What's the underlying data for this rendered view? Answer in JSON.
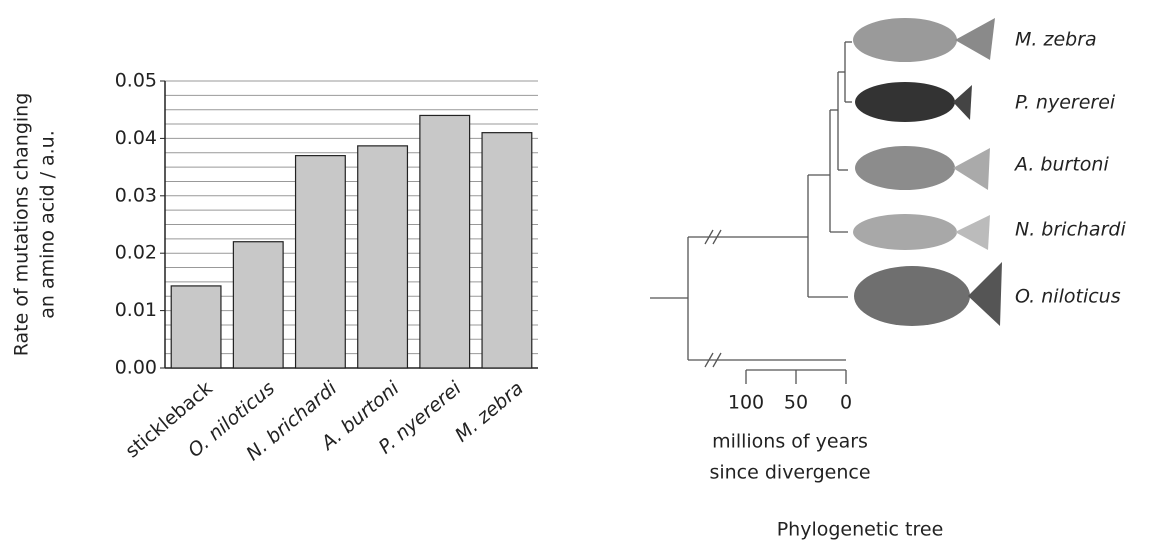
{
  "chart_data": {
    "type": "bar",
    "ylabel": [
      "Rate of mutations changing",
      "an amino acid / a.u."
    ],
    "categories": [
      "stickleback",
      "O. niloticus",
      "N. brichardi",
      "A. burtoni",
      "P. nyererei",
      "M. zebra"
    ],
    "values": [
      0.0143,
      0.022,
      0.037,
      0.0387,
      0.044,
      0.041
    ],
    "color": "#c8c8c8",
    "ylim": [
      0,
      0.05
    ],
    "yticks": [
      {
        "value": 0,
        "label": "0.00"
      },
      0.01,
      0.02,
      0.03,
      0.04,
      0.05
    ],
    "grid": true,
    "grid_values": [
      0.0025,
      0.005,
      0.0075,
      0.01,
      0.0125,
      0.015,
      0.0175,
      0.02,
      0.0225,
      0.025,
      0.0275,
      0.03,
      0.0325,
      0.035,
      0.0375,
      0.04,
      0.0425,
      0.045,
      0.0475,
      0.05
    ]
  },
  "tree": {
    "species": [
      "M. zebra",
      "P. nyererei",
      "A. burtoni",
      "N. brichardi",
      "O. niloticus"
    ],
    "xlim": [
      100,
      0
    ],
    "xticks": [
      100,
      50,
      0
    ],
    "xlabel": [
      "millions of years",
      "since divergence"
    ],
    "caption": "Phylogenetic tree"
  }
}
